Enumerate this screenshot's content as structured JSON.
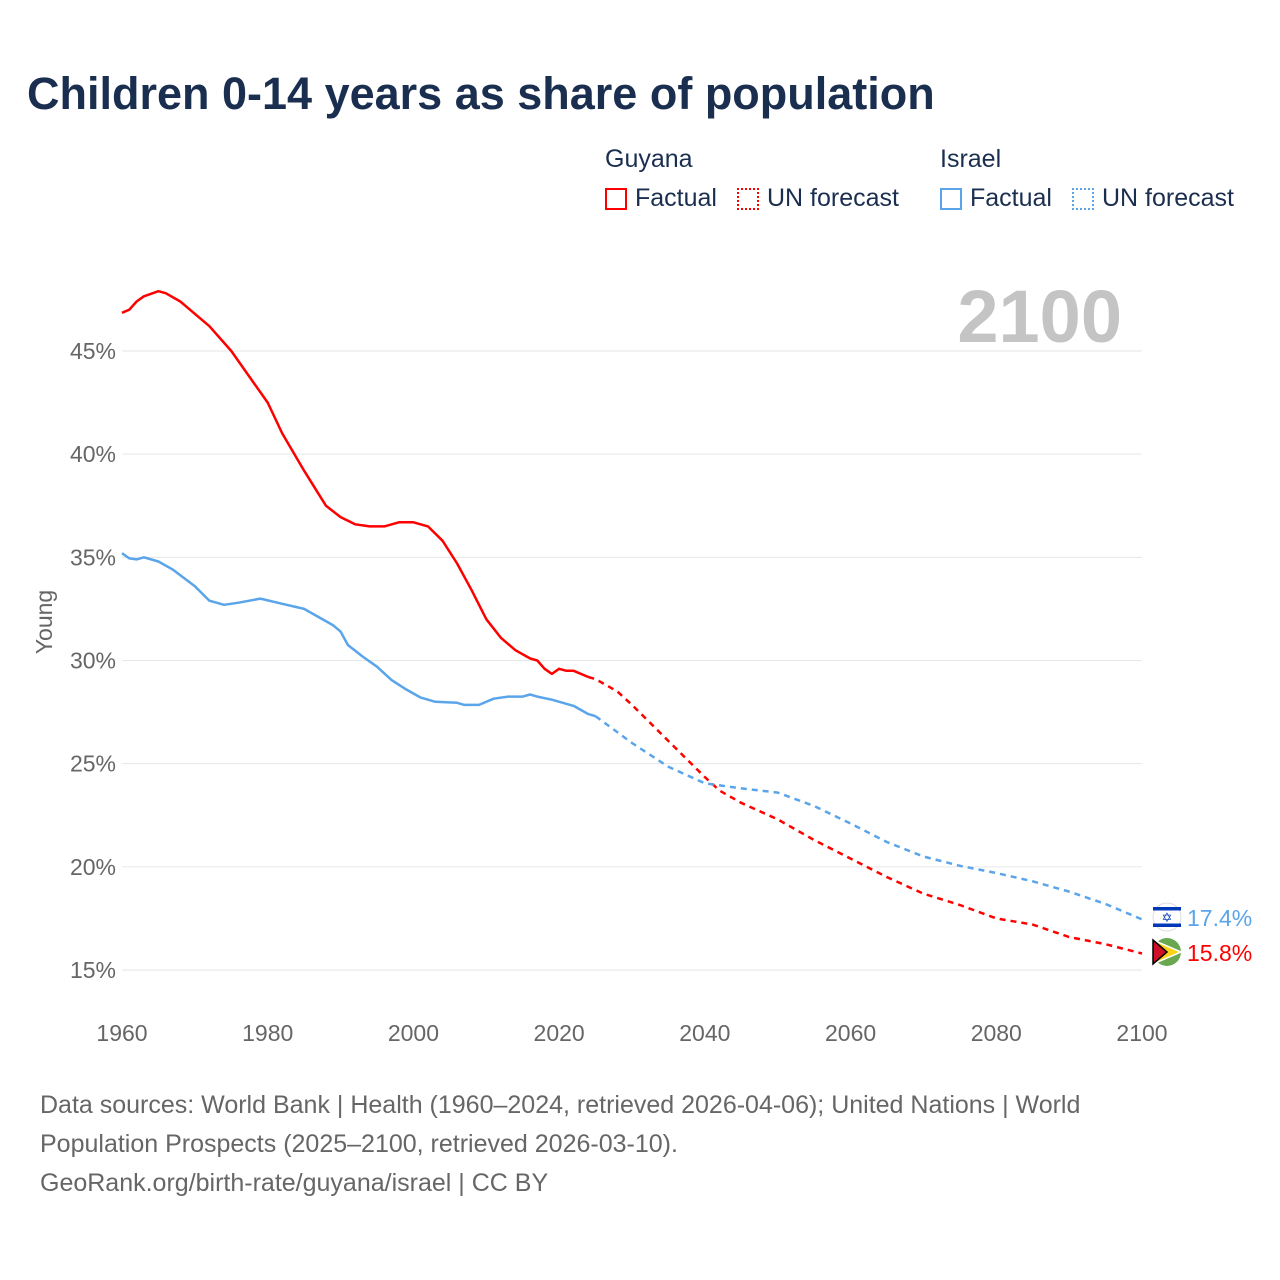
{
  "chart_data": {
    "type": "line",
    "title": "Children 0-14 years as share of population",
    "ylabel": "Young",
    "xlabel": "",
    "xlim": [
      1960,
      2100
    ],
    "ylim": [
      15,
      47
    ],
    "x_ticks": [
      "1960",
      "1980",
      "2000",
      "2020",
      "2040",
      "2060",
      "2080",
      "2100"
    ],
    "y_ticks": [
      {
        "v": 15,
        "label": "15%"
      },
      {
        "v": 20,
        "label": "20%"
      },
      {
        "v": 25,
        "label": "25%"
      },
      {
        "v": 30,
        "label": "30%"
      },
      {
        "v": 35,
        "label": "35%"
      },
      {
        "v": 40,
        "label": "40%"
      },
      {
        "v": 45,
        "label": "45%"
      }
    ],
    "year_watermark": "2100",
    "grid": true,
    "legend_placement": "top-right",
    "series": [
      {
        "country": "Guyana",
        "color": "#ff0000",
        "end_label": "15.8%",
        "factual": [
          [
            1960,
            46.85
          ],
          [
            1961,
            47.0
          ],
          [
            1962,
            47.4
          ],
          [
            1963,
            47.65
          ],
          [
            1965,
            47.9
          ],
          [
            1966,
            47.8
          ],
          [
            1968,
            47.4
          ],
          [
            1969,
            47.1
          ],
          [
            1972,
            46.2
          ],
          [
            1975,
            45.0
          ],
          [
            1978,
            43.5
          ],
          [
            1980,
            42.5
          ],
          [
            1982,
            41.0
          ],
          [
            1985,
            39.2
          ],
          [
            1988,
            37.5
          ],
          [
            1990,
            36.95
          ],
          [
            1992,
            36.6
          ],
          [
            1994,
            36.5
          ],
          [
            1996,
            36.5
          ],
          [
            1998,
            36.7
          ],
          [
            2000,
            36.7
          ],
          [
            2002,
            36.5
          ],
          [
            2004,
            35.8
          ],
          [
            2006,
            34.7
          ],
          [
            2008,
            33.4
          ],
          [
            2010,
            32.0
          ],
          [
            2012,
            31.1
          ],
          [
            2014,
            30.5
          ],
          [
            2016,
            30.1
          ],
          [
            2017,
            30.0
          ],
          [
            2018,
            29.6
          ],
          [
            2019,
            29.35
          ],
          [
            2020,
            29.6
          ],
          [
            2021,
            29.5
          ],
          [
            2022,
            29.5
          ],
          [
            2024,
            29.2
          ]
        ],
        "forecast": [
          [
            2024,
            29.2
          ],
          [
            2025,
            29.1
          ],
          [
            2028,
            28.5
          ],
          [
            2030,
            27.85
          ],
          [
            2035,
            26.1
          ],
          [
            2040,
            24.35
          ],
          [
            2042,
            23.7
          ],
          [
            2045,
            23.1
          ],
          [
            2050,
            22.3
          ],
          [
            2055,
            21.3
          ],
          [
            2060,
            20.4
          ],
          [
            2065,
            19.5
          ],
          [
            2070,
            18.7
          ],
          [
            2075,
            18.15
          ],
          [
            2080,
            17.5
          ],
          [
            2085,
            17.2
          ],
          [
            2090,
            16.6
          ],
          [
            2095,
            16.25
          ],
          [
            2100,
            15.8
          ]
        ]
      },
      {
        "country": "Israel",
        "color": "#5aa5ea",
        "end_label": "17.4%",
        "factual": [
          [
            1960,
            35.2
          ],
          [
            1961,
            34.95
          ],
          [
            1962,
            34.9
          ],
          [
            1963,
            35.0
          ],
          [
            1965,
            34.8
          ],
          [
            1967,
            34.4
          ],
          [
            1970,
            33.6
          ],
          [
            1972,
            32.9
          ],
          [
            1974,
            32.7
          ],
          [
            1976,
            32.8
          ],
          [
            1979,
            33.0
          ],
          [
            1982,
            32.75
          ],
          [
            1985,
            32.5
          ],
          [
            1989,
            31.7
          ],
          [
            1990,
            31.4
          ],
          [
            1991,
            30.75
          ],
          [
            1993,
            30.2
          ],
          [
            1995,
            29.7
          ],
          [
            1997,
            29.05
          ],
          [
            1999,
            28.6
          ],
          [
            2001,
            28.2
          ],
          [
            2003,
            28.0
          ],
          [
            2006,
            27.95
          ],
          [
            2007,
            27.85
          ],
          [
            2009,
            27.85
          ],
          [
            2011,
            28.15
          ],
          [
            2013,
            28.25
          ],
          [
            2015,
            28.25
          ],
          [
            2016,
            28.35
          ],
          [
            2017,
            28.25
          ],
          [
            2019,
            28.1
          ],
          [
            2022,
            27.8
          ],
          [
            2024,
            27.4
          ],
          [
            2025,
            27.3
          ]
        ],
        "forecast": [
          [
            2025,
            27.3
          ],
          [
            2030,
            26.0
          ],
          [
            2035,
            24.85
          ],
          [
            2040,
            24.05
          ],
          [
            2045,
            23.8
          ],
          [
            2050,
            23.6
          ],
          [
            2055,
            22.95
          ],
          [
            2060,
            22.1
          ],
          [
            2065,
            21.2
          ],
          [
            2070,
            20.5
          ],
          [
            2075,
            20.05
          ],
          [
            2080,
            19.7
          ],
          [
            2085,
            19.3
          ],
          [
            2090,
            18.8
          ],
          [
            2095,
            18.2
          ],
          [
            2100,
            17.45
          ]
        ]
      }
    ]
  },
  "legend": {
    "groups": [
      {
        "country": "Guyana",
        "factual": "Factual",
        "forecast": "UN forecast"
      },
      {
        "country": "Israel",
        "factual": "Factual",
        "forecast": "UN forecast"
      }
    ]
  },
  "footer": {
    "sources": "Data sources: World Bank | Health (1960–2024, retrieved 2026-04-06); United Nations | World Population Prospects (2025–2100, retrieved 2026-03-10).",
    "link": "GeoRank.org/birth-rate/guyana/israel | CC BY"
  }
}
